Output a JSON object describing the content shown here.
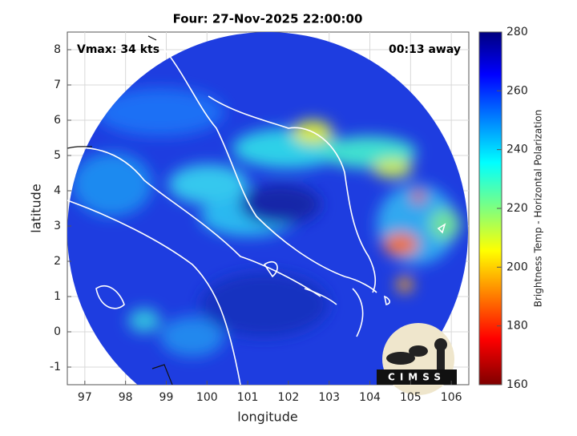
{
  "chart_data": {
    "type": "map",
    "title": "Four: 27-Nov-2025 22:00:00",
    "xlabel": "longitude",
    "ylabel": "latitude",
    "xlim": [
      96.57,
      106.43
    ],
    "ylim": [
      -1.5,
      8.5
    ],
    "xticks": [
      97,
      98,
      99,
      100,
      101,
      102,
      103,
      104,
      105,
      106
    ],
    "yticks": [
      -1,
      0,
      1,
      2,
      3,
      4,
      5,
      6,
      7,
      8
    ],
    "grid": true,
    "annotations": [
      "Vmax: 34 kts",
      "00:13 away"
    ],
    "colorbar": {
      "label": "Brightness Temp - Horizontal Polarization",
      "lim": [
        160,
        280
      ],
      "ticks": [
        160,
        180,
        200,
        220,
        240,
        260,
        280
      ]
    },
    "logo": "CIMSS"
  }
}
